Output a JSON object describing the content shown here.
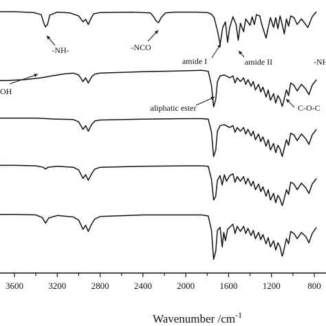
{
  "chart_data": {
    "type": "line",
    "title": "",
    "xlabel_main": "Wavenumber /cm",
    "xlabel_sup": "-1",
    "ylabel": "",
    "x_reversed": true,
    "xlim": [
      3600,
      800
    ],
    "x_ticks": [
      3600,
      3200,
      2800,
      2400,
      2000,
      1600,
      1200,
      800
    ],
    "tick_labels": [
      "3600",
      "3200",
      "2800",
      "2400",
      "2000",
      "1600",
      "1200",
      "800"
    ],
    "grid": false,
    "legend": "none",
    "series": [
      {
        "x": [
          3900,
          3600,
          3420,
          3350,
          3325,
          3310,
          3290,
          3270,
          3200,
          3080,
          3000,
          2960,
          2935,
          2910,
          2885,
          2860,
          2800,
          2500,
          2330,
          2300,
          2275,
          2255,
          2230,
          2190,
          2100,
          1900,
          1800,
          1760,
          1735,
          1700,
          1680,
          1655,
          1630,
          1610,
          1590,
          1560,
          1530,
          1510,
          1490,
          1460,
          1440,
          1400,
          1380,
          1360,
          1340,
          1310,
          1290,
          1250,
          1230,
          1210,
          1180,
          1160,
          1140,
          1120,
          1100,
          1080,
          1060,
          1040,
          1020,
          990,
          960,
          920,
          860,
          820,
          780
        ],
        "y": [
          0.92,
          0.92,
          0.9,
          0.85,
          0.65,
          0.56,
          0.63,
          0.84,
          0.91,
          0.89,
          0.82,
          0.68,
          0.74,
          0.62,
          0.76,
          0.87,
          0.9,
          0.91,
          0.89,
          0.8,
          0.7,
          0.66,
          0.78,
          0.89,
          0.91,
          0.91,
          0.9,
          0.86,
          0.78,
          0.42,
          0.15,
          0.55,
          0.68,
          0.2,
          0.55,
          0.8,
          0.62,
          0.25,
          0.65,
          0.45,
          0.75,
          0.6,
          0.8,
          0.62,
          0.85,
          0.82,
          0.62,
          0.3,
          0.55,
          0.78,
          0.55,
          0.78,
          0.52,
          0.82,
          0.62,
          0.4,
          0.75,
          0.58,
          0.82,
          0.78,
          0.62,
          0.75,
          0.55,
          0.8,
          0.92
        ]
      },
      {
        "x": [
          3900,
          3700,
          3500,
          3350,
          3250,
          3150,
          3050,
          3000,
          2960,
          2935,
          2910,
          2880,
          2850,
          2800,
          2400,
          2000,
          1850,
          1790,
          1760,
          1740,
          1720,
          1705,
          1680,
          1640,
          1590,
          1560,
          1540,
          1520,
          1490,
          1460,
          1440,
          1420,
          1390,
          1370,
          1350,
          1320,
          1300,
          1280,
          1250,
          1230,
          1210,
          1180,
          1160,
          1140,
          1120,
          1100,
          1090,
          1080,
          1060,
          1040,
          1020,
          990,
          960,
          920,
          880,
          850,
          820,
          780
        ],
        "y": [
          0.62,
          0.6,
          0.62,
          0.66,
          0.7,
          0.74,
          0.76,
          0.72,
          0.58,
          0.66,
          0.55,
          0.68,
          0.74,
          0.76,
          0.79,
          0.81,
          0.82,
          0.8,
          0.5,
          0.04,
          0.2,
          0.58,
          0.7,
          0.72,
          0.66,
          0.7,
          0.55,
          0.66,
          0.58,
          0.66,
          0.52,
          0.62,
          0.48,
          0.58,
          0.4,
          0.52,
          0.36,
          0.46,
          0.25,
          0.4,
          0.18,
          0.32,
          0.12,
          0.28,
          0.2,
          0.05,
          0.12,
          0.22,
          0.4,
          0.28,
          0.55,
          0.5,
          0.38,
          0.52,
          0.42,
          0.3,
          0.5,
          0.62
        ]
      },
      {
        "x": [
          3900,
          3600,
          3400,
          3300,
          3200,
          3050,
          3000,
          2960,
          2935,
          2910,
          2880,
          2850,
          2800,
          2400,
          2000,
          1850,
          1790,
          1760,
          1740,
          1720,
          1705,
          1680,
          1640,
          1590,
          1560,
          1540,
          1520,
          1490,
          1460,
          1440,
          1420,
          1390,
          1370,
          1350,
          1320,
          1300,
          1280,
          1250,
          1230,
          1210,
          1180,
          1160,
          1140,
          1120,
          1100,
          1090,
          1080,
          1060,
          1040,
          1020,
          990,
          960,
          920,
          880,
          850,
          820,
          780
        ],
        "y": [
          0.9,
          0.9,
          0.9,
          0.89,
          0.88,
          0.87,
          0.82,
          0.66,
          0.74,
          0.62,
          0.76,
          0.84,
          0.86,
          0.88,
          0.89,
          0.89,
          0.88,
          0.6,
          0.08,
          0.22,
          0.62,
          0.74,
          0.76,
          0.7,
          0.74,
          0.6,
          0.7,
          0.62,
          0.7,
          0.56,
          0.66,
          0.52,
          0.62,
          0.44,
          0.56,
          0.4,
          0.5,
          0.3,
          0.44,
          0.22,
          0.36,
          0.16,
          0.32,
          0.24,
          0.08,
          0.16,
          0.26,
          0.44,
          0.32,
          0.58,
          0.54,
          0.42,
          0.56,
          0.46,
          0.34,
          0.54,
          0.66
        ]
      },
      {
        "x": [
          3900,
          3600,
          3400,
          3330,
          3310,
          3290,
          3200,
          3050,
          3000,
          2960,
          2935,
          2910,
          2880,
          2850,
          2800,
          2400,
          2000,
          1850,
          1790,
          1760,
          1740,
          1720,
          1705,
          1680,
          1660,
          1640,
          1620,
          1590,
          1560,
          1540,
          1520,
          1490,
          1460,
          1440,
          1420,
          1390,
          1370,
          1350,
          1320,
          1300,
          1280,
          1250,
          1230,
          1210,
          1180,
          1160,
          1140,
          1120,
          1100,
          1090,
          1080,
          1060,
          1040,
          1020,
          990,
          960,
          920,
          880,
          850,
          820,
          780
        ],
        "y": [
          0.92,
          0.92,
          0.91,
          0.88,
          0.84,
          0.88,
          0.9,
          0.88,
          0.82,
          0.64,
          0.72,
          0.6,
          0.74,
          0.84,
          0.88,
          0.9,
          0.91,
          0.91,
          0.9,
          0.62,
          0.18,
          0.26,
          0.6,
          0.7,
          0.5,
          0.72,
          0.58,
          0.7,
          0.74,
          0.56,
          0.68,
          0.58,
          0.68,
          0.52,
          0.64,
          0.48,
          0.58,
          0.4,
          0.52,
          0.36,
          0.46,
          0.26,
          0.4,
          0.18,
          0.32,
          0.12,
          0.28,
          0.2,
          0.06,
          0.12,
          0.22,
          0.4,
          0.3,
          0.56,
          0.52,
          0.4,
          0.54,
          0.44,
          0.32,
          0.52,
          0.64
        ]
      },
      {
        "x": [
          3900,
          3600,
          3400,
          3340,
          3310,
          3280,
          3200,
          3050,
          3000,
          2960,
          2935,
          2910,
          2880,
          2850,
          2800,
          2400,
          2000,
          1850,
          1790,
          1760,
          1740,
          1720,
          1705,
          1680,
          1660,
          1645,
          1630,
          1610,
          1590,
          1560,
          1540,
          1520,
          1490,
          1460,
          1440,
          1420,
          1390,
          1370,
          1350,
          1320,
          1300,
          1280,
          1250,
          1230,
          1210,
          1180,
          1160,
          1140,
          1120,
          1100,
          1090,
          1080,
          1060,
          1040,
          1020,
          990,
          960,
          920,
          880,
          850,
          820,
          780
        ],
        "y": [
          0.91,
          0.91,
          0.9,
          0.85,
          0.74,
          0.84,
          0.89,
          0.86,
          0.8,
          0.62,
          0.7,
          0.58,
          0.72,
          0.82,
          0.87,
          0.9,
          0.9,
          0.9,
          0.88,
          0.6,
          0.04,
          0.2,
          0.6,
          0.66,
          0.28,
          0.56,
          0.4,
          0.62,
          0.66,
          0.72,
          0.54,
          0.68,
          0.58,
          0.68,
          0.54,
          0.64,
          0.5,
          0.6,
          0.44,
          0.56,
          0.42,
          0.52,
          0.34,
          0.46,
          0.28,
          0.4,
          0.22,
          0.36,
          0.28,
          0.1,
          0.16,
          0.26,
          0.44,
          0.34,
          0.58,
          0.54,
          0.44,
          0.56,
          0.48,
          0.36,
          0.54,
          0.66
        ]
      }
    ],
    "annotations": [
      {
        "text": "-NH-",
        "wavenumber": 3310,
        "series": 0
      },
      {
        "text": "-NCO",
        "wavenumber": 2255,
        "series": 0
      },
      {
        "text": "amide I",
        "wavenumber": 1680,
        "series": 0
      },
      {
        "text": "amide II",
        "wavenumber": 1510,
        "series": 0
      },
      {
        "text": "-NH",
        "wavenumber": 800,
        "series": 0
      },
      {
        "text": "OH",
        "wavenumber": 3500,
        "series": 1
      },
      {
        "text": "aliphatic ester",
        "wavenumber": 1740,
        "series": 1
      },
      {
        "text": "C-O-C",
        "wavenumber": 1100,
        "series": 1
      }
    ]
  }
}
